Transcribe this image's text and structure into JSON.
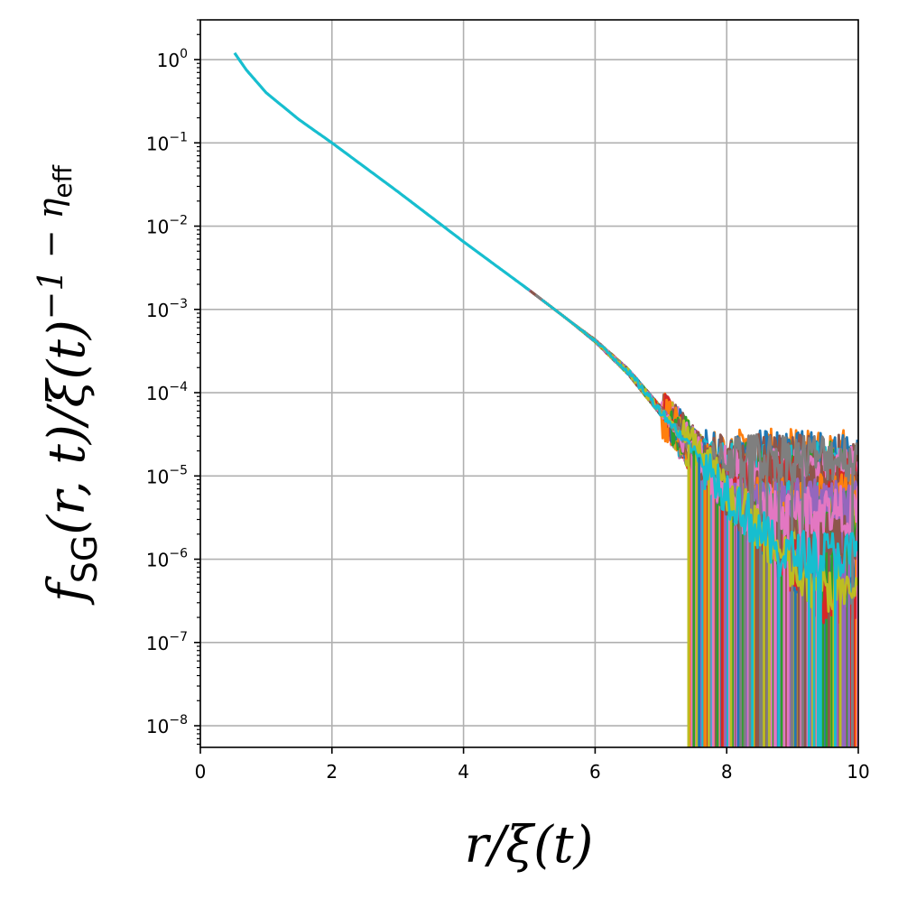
{
  "chart_data": {
    "type": "line",
    "xlabel": "r/ξ(t)",
    "ylabel_parts": {
      "f": "f",
      "sub": "SG",
      "main": "(r, t)/ξ(t)",
      "sup": "−1 − η",
      "supsub": "eff"
    },
    "xlim": [
      0,
      10
    ],
    "ylim": [
      5.5e-09,
      3.0
    ],
    "yscale": "log",
    "grid": true,
    "x_ticks": [
      0,
      2,
      4,
      6,
      8,
      10
    ],
    "x_tick_labels": [
      "0",
      "2",
      "4",
      "6",
      "8",
      "10"
    ],
    "y_ticks": [
      1,
      0.1,
      0.01,
      0.001,
      0.0001,
      1e-05,
      1e-06,
      1e-07,
      1e-08
    ],
    "y_tick_labels": [
      {
        "base": "10",
        "exp": "0"
      },
      {
        "base": "10",
        "exp": "−1"
      },
      {
        "base": "10",
        "exp": "−2"
      },
      {
        "base": "10",
        "exp": "−3"
      },
      {
        "base": "10",
        "exp": "−4"
      },
      {
        "base": "10",
        "exp": "−5"
      },
      {
        "base": "10",
        "exp": "−6"
      },
      {
        "base": "10",
        "exp": "−7"
      },
      {
        "base": "10",
        "exp": "−8"
      }
    ],
    "series_colors": [
      "#1f77b4",
      "#ff7f0e",
      "#2ca02c",
      "#d62728",
      "#9467bd",
      "#8c564b",
      "#e377c2",
      "#7f7f7f",
      "#bcbd22",
      "#17becf"
    ],
    "master_curve": {
      "x": [
        0.52,
        0.7,
        1.0,
        1.5,
        2.0,
        3.0,
        4.0,
        5.0,
        5.5,
        6.0,
        6.5,
        7.0
      ],
      "y": [
        1.2,
        0.75,
        0.4,
        0.19,
        0.1,
        0.026,
        0.0065,
        0.0017,
        0.00085,
        0.00042,
        0.00018,
        6e-05
      ]
    },
    "noise_floor": {
      "x_start_range": [
        7.0,
        7.9
      ],
      "floor_range": [
        3e-07,
        2e-05
      ],
      "drop_x_min": 7.42
    }
  }
}
